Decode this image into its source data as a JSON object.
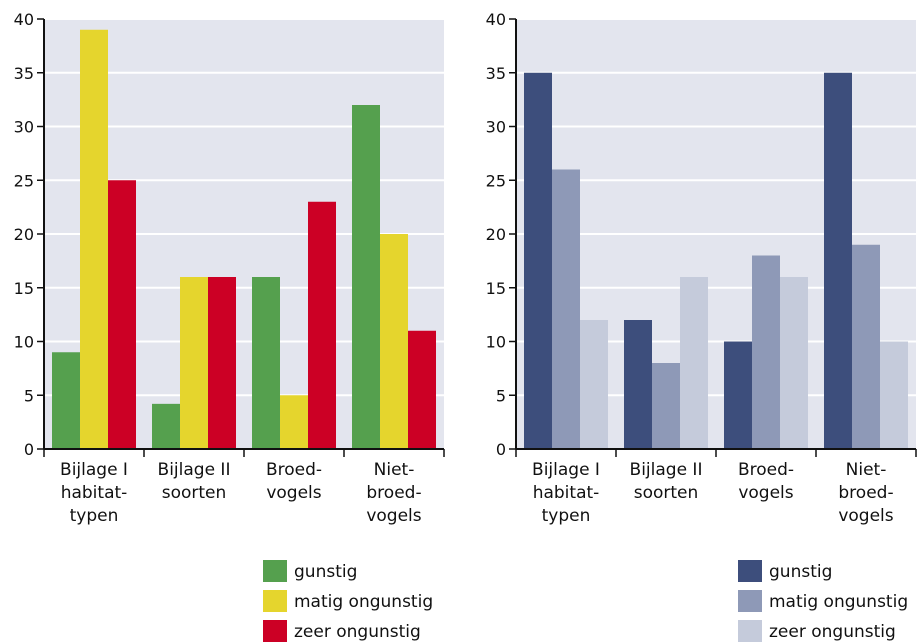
{
  "chart_data": [
    {
      "type": "bar",
      "title": "",
      "xlabel": "",
      "ylabel": "",
      "ylim": [
        0,
        40
      ],
      "yticks": [
        "0",
        "5",
        "10",
        "15",
        "20",
        "25",
        "30",
        "35",
        "40"
      ],
      "grid": true,
      "legend_position": "bottom",
      "categories": [
        [
          "Bijlage I",
          "habitat-",
          "typen"
        ],
        [
          "Bijlage II",
          "soorten"
        ],
        [
          "Broed-",
          "vogels"
        ],
        [
          "Niet-",
          "broed-",
          "vogels"
        ]
      ],
      "series": [
        {
          "name": "gunstig",
          "color": "#55a04e",
          "values": [
            9,
            4.2,
            16,
            32
          ]
        },
        {
          "name": "matig ongunstig",
          "color": "#e5d52d",
          "values": [
            39,
            16,
            5,
            20
          ]
        },
        {
          "name": "zeer ongunstig",
          "color": "#cc0025",
          "values": [
            25,
            16,
            23,
            11
          ]
        }
      ]
    },
    {
      "type": "bar",
      "title": "",
      "xlabel": "",
      "ylabel": "",
      "ylim": [
        0,
        40
      ],
      "yticks": [
        "0",
        "5",
        "10",
        "15",
        "20",
        "25",
        "30",
        "35",
        "40"
      ],
      "grid": true,
      "legend_position": "bottom",
      "categories": [
        [
          "Bijlage I",
          "habitat-",
          "typen"
        ],
        [
          "Bijlage II",
          "soorten"
        ],
        [
          "Broed-",
          "vogels"
        ],
        [
          "Niet-",
          "broed-",
          "vogels"
        ]
      ],
      "series": [
        {
          "name": "gunstig",
          "color": "#3d4e7c",
          "values": [
            35,
            12,
            10,
            35
          ]
        },
        {
          "name": "matig ongunstig",
          "color": "#8e99b7",
          "values": [
            26,
            8,
            18,
            19
          ]
        },
        {
          "name": "zeer ongunstig",
          "color": "#c5cbdb",
          "values": [
            12,
            16,
            16,
            10
          ]
        }
      ]
    }
  ],
  "colors": {
    "plot_background": "#e3e5ee",
    "grid": "#ffffff",
    "axis": "#111111"
  }
}
